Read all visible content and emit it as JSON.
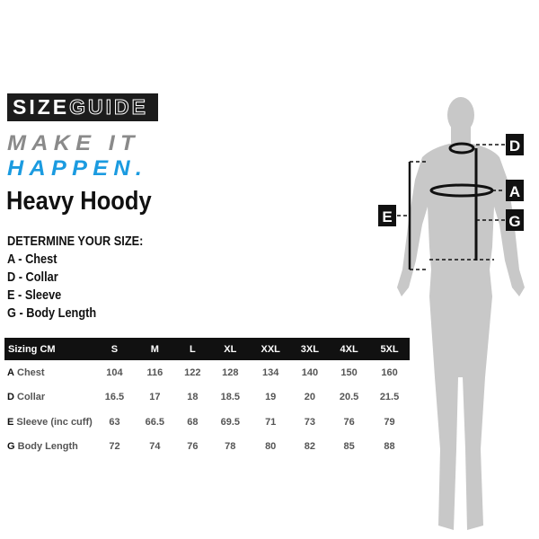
{
  "logo": {
    "part1": "SIZE",
    "part2": "GUIDE"
  },
  "tagline": {
    "line1": "MAKE IT",
    "line2": "HAPPEN."
  },
  "title": "Heavy Hoody",
  "determine": "DETERMINE YOUR SIZE:",
  "measurements": [
    "A - Chest",
    "D - Collar",
    "E - Sleeve",
    "G - Body Length"
  ],
  "diagram_labels": [
    "D",
    "A",
    "E",
    "G"
  ],
  "table": {
    "headers": [
      "Sizing CM",
      "S",
      "M",
      "L",
      "XL",
      "XXL",
      "3XL",
      "4XL",
      "5XL"
    ],
    "rows": [
      {
        "code": "A",
        "label": "Chest",
        "values": [
          "104",
          "116",
          "122",
          "128",
          "134",
          "140",
          "150",
          "160"
        ]
      },
      {
        "code": "D",
        "label": "Collar",
        "values": [
          "16.5",
          "17",
          "18",
          "18.5",
          "19",
          "20",
          "20.5",
          "21.5"
        ]
      },
      {
        "code": "E",
        "label": "Sleeve (inc cuff)",
        "values": [
          "63",
          "66.5",
          "68",
          "69.5",
          "71",
          "73",
          "76",
          "79"
        ]
      },
      {
        "code": "G",
        "label": "Body Length",
        "values": [
          "72",
          "74",
          "76",
          "78",
          "80",
          "82",
          "85",
          "88"
        ]
      }
    ]
  },
  "colors": {
    "accent_blue": "#1b9be0",
    "grey_text": "#8a8a8a",
    "figure": "#c8c8c8"
  }
}
